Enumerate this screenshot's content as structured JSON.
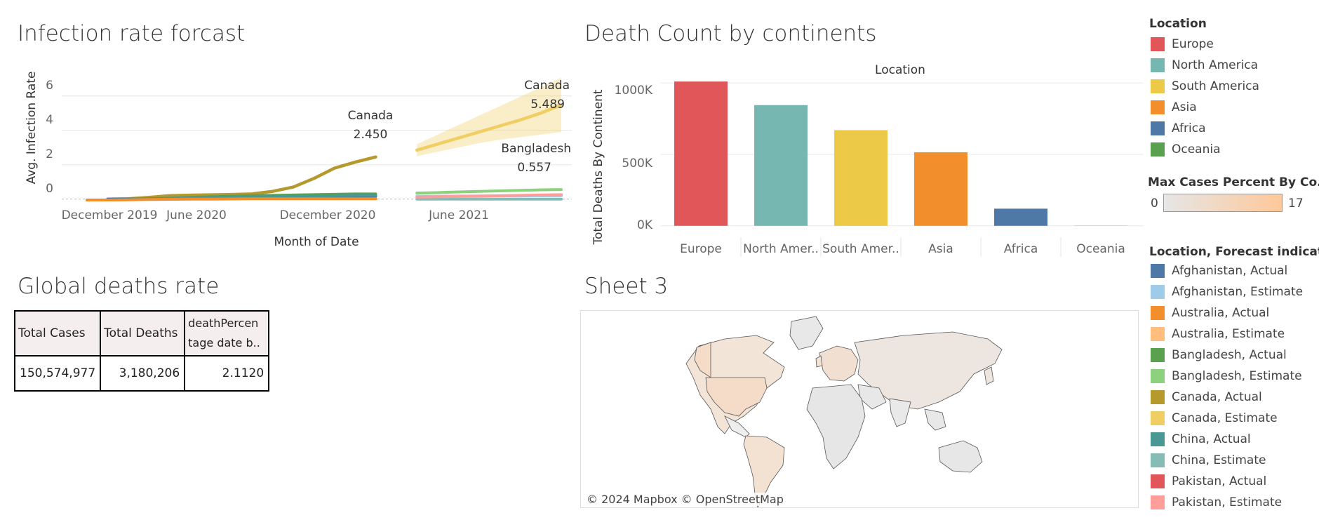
{
  "infection": {
    "title": "Infection rate forcast",
    "xlabel": "Month of Date",
    "ylabel": "Avg. Infection Rate",
    "xticks": [
      "December 2019",
      "June 2020",
      "December 2020",
      "June 2021"
    ],
    "yticks": [
      "6",
      "4",
      "2",
      "0"
    ],
    "annotations": {
      "canada_actual_name": "Canada",
      "canada_actual_value": "2.450",
      "canada_est_name": "Canada",
      "canada_est_value": "5.489",
      "bangladesh_est_name": "Bangladesh",
      "bangladesh_est_value": "0.557"
    }
  },
  "deaths": {
    "title": "Death Count by continents",
    "header": "Location",
    "ylabel": "Total Deaths By Continent",
    "yticks": [
      "1000K",
      "500K",
      "0K"
    ]
  },
  "global": {
    "title": "Global deaths rate",
    "headers": [
      "Total Cases",
      "Total Deaths",
      "deathPercen tage date b.."
    ],
    "values": [
      "150,574,977",
      "3,180,206",
      "2.1120"
    ]
  },
  "sheet3": {
    "title": "Sheet 3",
    "attribution": "© 2024 Mapbox © OpenStreetMap",
    "colors": {
      "high": "#f5dcc8",
      "low": "#e8e8e8",
      "border": "#555555"
    }
  },
  "legends": {
    "location_title": "Location",
    "location_items": [
      {
        "label": "Europe",
        "color": "#e15759"
      },
      {
        "label": "North America",
        "color": "#76b7b2"
      },
      {
        "label": "South America",
        "color": "#edc948"
      },
      {
        "label": "Asia",
        "color": "#f28e2b"
      },
      {
        "label": "Africa",
        "color": "#4e79a7"
      },
      {
        "label": "Oceania",
        "color": "#59a14f"
      }
    ],
    "gradient_title": "Max Cases Percent By Co..",
    "gradient_min": "0",
    "gradient_max": "17",
    "gradient_colors": [
      "#e6e6e6",
      "#ffc89a"
    ],
    "forecast_title": "Location, Forecast indicat..",
    "forecast_items": [
      {
        "label": "Afghanistan, Actual",
        "color": "#4e79a7"
      },
      {
        "label": "Afghanistan, Estimate",
        "color": "#a0cbe8"
      },
      {
        "label": "Australia, Actual",
        "color": "#f28e2b"
      },
      {
        "label": "Australia, Estimate",
        "color": "#ffbe7d"
      },
      {
        "label": "Bangladesh, Actual",
        "color": "#59a14f"
      },
      {
        "label": "Bangladesh, Estimate",
        "color": "#8cd17d"
      },
      {
        "label": "Canada, Actual",
        "color": "#b6992d"
      },
      {
        "label": "Canada, Estimate",
        "color": "#f1ce63"
      },
      {
        "label": "China, Actual",
        "color": "#499894"
      },
      {
        "label": "China, Estimate",
        "color": "#86bcb6"
      },
      {
        "label": "Pakistan, Actual",
        "color": "#e15759"
      },
      {
        "label": "Pakistan, Estimate",
        "color": "#ff9d9a"
      }
    ]
  },
  "chart_data": [
    {
      "type": "line",
      "title": "Infection rate forcast",
      "xlabel": "Month of Date",
      "ylabel": "Avg. Infection Rate",
      "ylim": [
        -0.5,
        7.5
      ],
      "x": [
        "2019-12",
        "2020-01",
        "2020-02",
        "2020-03",
        "2020-04",
        "2020-05",
        "2020-06",
        "2020-07",
        "2020-08",
        "2020-09",
        "2020-10",
        "2020-11",
        "2020-12",
        "2021-01",
        "2021-02",
        "2021-03",
        "2021-04",
        "2021-05",
        "2021-06",
        "2021-07",
        "2021-08",
        "2021-09",
        "2021-10",
        "2021-11"
      ],
      "series": [
        {
          "name": "Canada, Actual",
          "values": [
            null,
            0.0,
            0.02,
            0.1,
            0.2,
            0.23,
            0.25,
            0.27,
            0.3,
            0.45,
            0.7,
            1.2,
            1.8,
            2.15,
            2.45,
            null,
            null,
            null,
            null,
            null,
            null,
            null,
            null,
            null
          ]
        },
        {
          "name": "Canada, Estimate",
          "values": [
            null,
            null,
            null,
            null,
            null,
            null,
            null,
            null,
            null,
            null,
            null,
            null,
            null,
            null,
            null,
            null,
            2.85,
            3.2,
            3.55,
            3.9,
            4.25,
            4.6,
            5.0,
            5.489
          ],
          "band_lower": [
            null,
            null,
            null,
            null,
            null,
            null,
            null,
            null,
            null,
            null,
            null,
            null,
            null,
            null,
            null,
            null,
            2.5,
            2.75,
            3.0,
            3.25,
            3.45,
            3.6,
            3.75,
            3.9
          ],
          "band_upper": [
            null,
            null,
            null,
            null,
            null,
            null,
            null,
            null,
            null,
            null,
            null,
            null,
            null,
            null,
            null,
            null,
            3.2,
            3.75,
            4.3,
            4.85,
            5.4,
            5.95,
            6.5,
            7.05
          ]
        },
        {
          "name": "Bangladesh, Actual",
          "values": [
            null,
            0.0,
            0.0,
            0.02,
            0.05,
            0.1,
            0.14,
            0.17,
            0.2,
            0.22,
            0.24,
            0.26,
            0.28,
            0.3,
            0.3,
            null,
            null,
            null,
            null,
            null,
            null,
            null,
            null,
            null
          ]
        },
        {
          "name": "Bangladesh, Estimate",
          "values": [
            null,
            null,
            null,
            null,
            null,
            null,
            null,
            null,
            null,
            null,
            null,
            null,
            null,
            null,
            null,
            null,
            0.35,
            0.38,
            0.42,
            0.45,
            0.48,
            0.51,
            0.54,
            0.557
          ]
        },
        {
          "name": "Afghanistan, Actual",
          "values": [
            null,
            0.0,
            0.0,
            0.01,
            0.03,
            0.06,
            0.08,
            0.1,
            0.11,
            0.12,
            0.13,
            0.14,
            0.15,
            0.16,
            0.16,
            null,
            null,
            null,
            null,
            null,
            null,
            null,
            null,
            null
          ]
        },
        {
          "name": "Afghanistan, Estimate",
          "values": [
            null,
            null,
            null,
            null,
            null,
            null,
            null,
            null,
            null,
            null,
            null,
            null,
            null,
            null,
            null,
            null,
            0.17,
            0.17,
            0.18,
            0.18,
            0.19,
            0.19,
            0.2,
            0.2
          ]
        },
        {
          "name": "China, Actual",
          "values": [
            -0.05,
            -0.05,
            -0.03,
            0.02,
            0.05,
            0.08,
            0.1,
            0.12,
            0.13,
            0.14,
            0.15,
            0.17,
            0.2,
            0.22,
            0.22,
            null,
            null,
            null,
            null,
            null,
            null,
            null,
            null,
            null
          ]
        },
        {
          "name": "China, Estimate",
          "values": [
            null,
            null,
            null,
            null,
            null,
            null,
            null,
            null,
            null,
            null,
            null,
            null,
            null,
            null,
            null,
            null,
            0.0,
            0.0,
            0.0,
            0.0,
            0.0,
            0.0,
            0.0,
            0.0
          ]
        },
        {
          "name": "Australia, Actual",
          "values": [
            -0.05,
            -0.05,
            -0.04,
            -0.02,
            -0.01,
            0.0,
            0.0,
            0.01,
            0.02,
            0.02,
            0.02,
            0.02,
            0.02,
            0.02,
            0.02,
            null,
            null,
            null,
            null,
            null,
            null,
            null,
            null,
            null
          ]
        },
        {
          "name": "Pakistan, Estimate",
          "values": [
            null,
            null,
            null,
            null,
            null,
            null,
            null,
            null,
            null,
            null,
            null,
            null,
            null,
            null,
            null,
            null,
            0.12,
            0.14,
            0.16,
            0.18,
            0.2,
            0.22,
            0.24,
            0.26
          ]
        }
      ]
    },
    {
      "type": "bar",
      "title": "Death Count by continents",
      "xlabel": "Location",
      "ylabel": "Total Deaths By Continent",
      "categories": [
        "Europe",
        "North Amer..",
        "South Amer..",
        "Asia",
        "Africa",
        "Oceania"
      ],
      "values": [
        1010000,
        845000,
        670000,
        515000,
        120000,
        1000
      ],
      "colors": [
        "#e15759",
        "#76b7b2",
        "#edc948",
        "#f28e2b",
        "#4e79a7",
        "#59a14f"
      ],
      "ylim": [
        -60000,
        1060000
      ]
    }
  ]
}
